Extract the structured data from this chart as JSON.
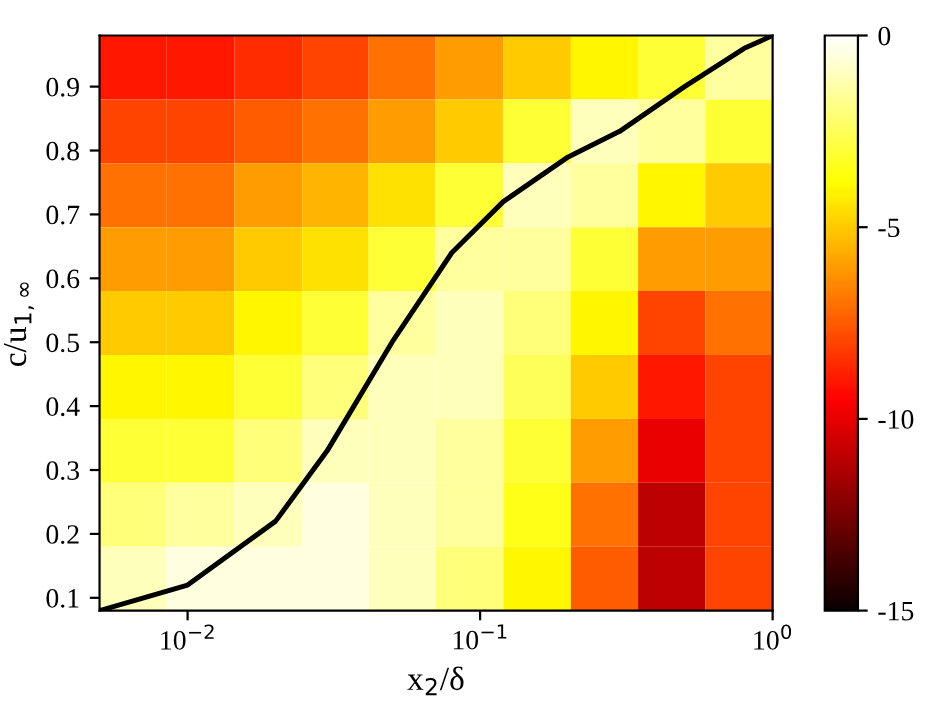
{
  "chart_data": {
    "type": "heatmap",
    "xlabel": "x$_{2}$/δ",
    "ylabel": "c/u$_{1,∞}$",
    "log": "x",
    "x": [
      0.0065,
      0.011,
      0.019,
      0.032,
      0.054,
      0.092,
      0.157,
      0.266,
      0.452,
      0.767
    ],
    "y": [
      0.93,
      0.83,
      0.73,
      0.63,
      0.53,
      0.43,
      0.33,
      0.23,
      0.13
    ],
    "cells": [
      [
        -9,
        -9,
        -8.5,
        -8,
        -7,
        -6,
        -5,
        -4,
        -3,
        -1.5
      ],
      [
        -8,
        -8,
        -7.5,
        -7,
        -6,
        -5,
        -3,
        -1,
        -1.5,
        -3
      ],
      [
        -7,
        -7,
        -6,
        -5.5,
        -4.5,
        -3,
        -1,
        -1.5,
        -4,
        -5
      ],
      [
        -6,
        -6,
        -5,
        -4.5,
        -3,
        -1.5,
        -1.5,
        -3,
        -6,
        -6
      ],
      [
        -5,
        -5,
        -4,
        -3,
        -1.5,
        -1,
        -2,
        -4,
        -8,
        -7
      ],
      [
        -4,
        -4,
        -3,
        -2,
        -1,
        -1,
        -2.5,
        -5,
        -9,
        -8
      ],
      [
        -3,
        -3,
        -2,
        -1,
        -1,
        -1.5,
        -3,
        -6,
        -10,
        -8
      ],
      [
        -2,
        -1.5,
        -1,
        -0.5,
        -1,
        -1.5,
        -3.5,
        -7,
        -11,
        -8
      ],
      [
        -1,
        -0.5,
        -0.5,
        -0.5,
        -1,
        -2,
        -4,
        -7.5,
        -11,
        -8
      ]
    ],
    "clim": [
      -15,
      0
    ],
    "cticks": [
      0,
      -5,
      -10,
      -15
    ],
    "xlim": [
      0.005,
      1
    ],
    "xticks": [
      {
        "value": 0.01,
        "label": "10$^{−2}$"
      },
      {
        "value": 0.1,
        "label": "10$^{−1}$"
      },
      {
        "value": 1,
        "label": "10$^{0}$"
      }
    ],
    "ylim": [
      0.08,
      0.98
    ],
    "yticks": [
      0.1,
      0.2,
      0.3,
      0.4,
      0.5,
      0.6,
      0.7,
      0.8,
      0.9
    ],
    "series": [
      {
        "type": "line",
        "color": "#000000",
        "x": [
          0.005,
          0.01,
          0.02,
          0.03,
          0.05,
          0.08,
          0.12,
          0.2,
          0.3,
          0.5,
          0.8,
          1.0
        ],
        "values": [
          0.08,
          0.12,
          0.22,
          0.33,
          0.5,
          0.64,
          0.72,
          0.79,
          0.83,
          0.9,
          0.96,
          0.98
        ]
      }
    ]
  }
}
